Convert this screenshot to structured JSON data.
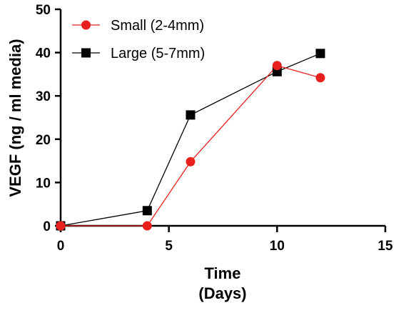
{
  "chart_data": {
    "type": "line",
    "title": "",
    "xlabel": "Time",
    "xlabel_line2": "(Days)",
    "ylabel": "VEGF (ng / ml media)",
    "xlim": [
      0,
      15
    ],
    "ylim": [
      0,
      50
    ],
    "x_ticks": [
      "0",
      "5",
      "10",
      "15"
    ],
    "y_ticks": [
      "0",
      "10",
      "20",
      "30",
      "40",
      "50"
    ],
    "grid": false,
    "legend_position": "top-left",
    "series": [
      {
        "name": "Small (2-4mm)",
        "color": "#e8211f",
        "marker": "circle",
        "x": [
          0,
          4,
          6,
          10,
          12
        ],
        "y": [
          0,
          0,
          14.8,
          37,
          34.2
        ]
      },
      {
        "name": "Large (5-7mm)",
        "color": "#000000",
        "marker": "square",
        "x": [
          0,
          4,
          6,
          10,
          12
        ],
        "y": [
          0,
          3.5,
          25.6,
          35.6,
          39.8
        ]
      }
    ]
  }
}
